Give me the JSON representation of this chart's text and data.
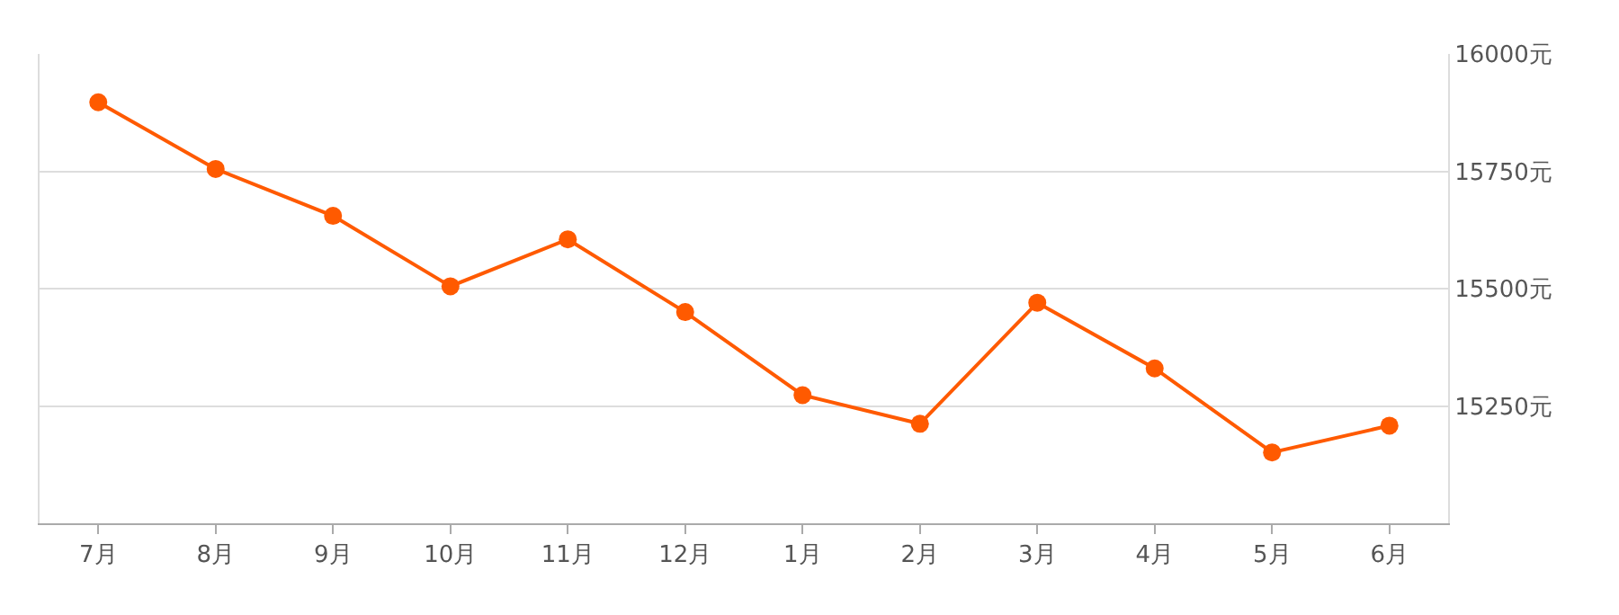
{
  "chart_data": {
    "type": "line",
    "categories": [
      "7月",
      "8月",
      "9月",
      "10月",
      "11月",
      "12月",
      "1月",
      "2月",
      "3月",
      "4月",
      "5月",
      "6月"
    ],
    "series": [
      {
        "color": "#ff5a00",
        "values": [
          15897,
          15755,
          15655,
          15505,
          15605,
          15450,
          15273,
          15212,
          15470,
          15330,
          15151,
          15208
        ]
      }
    ],
    "ylim": [
      15000,
      16000
    ],
    "yticks": [
      {
        "value": 15250,
        "label": "15250元"
      },
      {
        "value": 15500,
        "label": "15500元"
      },
      {
        "value": 15750,
        "label": "15750元"
      },
      {
        "value": 16000,
        "label": "16000元"
      }
    ],
    "grid": "y",
    "marker": "circle",
    "line_style": "solid",
    "legend": false
  }
}
